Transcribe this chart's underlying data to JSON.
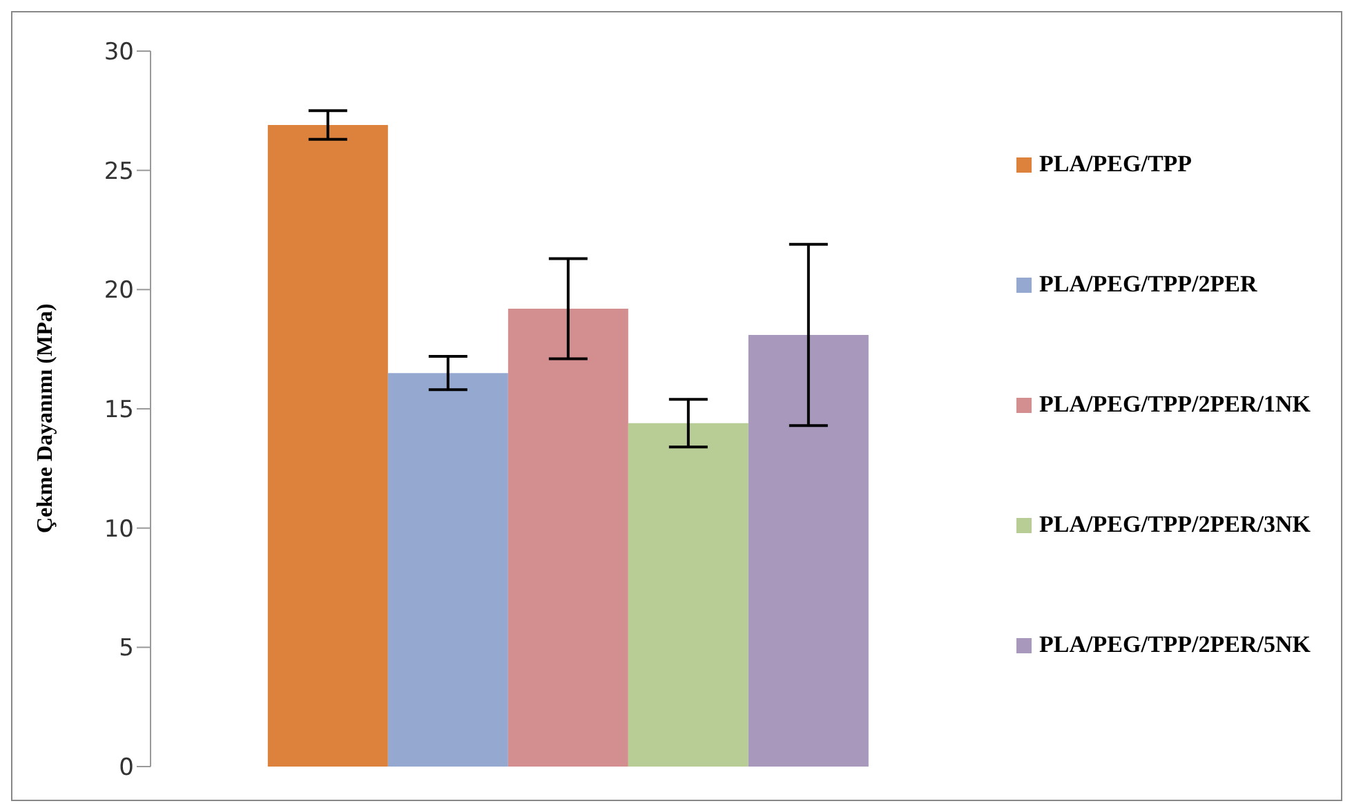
{
  "chart_data": {
    "type": "bar",
    "ylabel": "Çekme Dayanımı  (MPa)",
    "categories": [
      null
    ],
    "series": [
      {
        "name": "PLA/PEG/TPP",
        "color": "#dc823d",
        "values": [
          26.9
        ],
        "errors": [
          0.6
        ]
      },
      {
        "name": "PLA/PEG/TPP/2PER",
        "color": "#95a9d0",
        "values": [
          16.5
        ],
        "errors": [
          0.7
        ]
      },
      {
        "name": "PLA/PEG/TPP/2PER/1NK",
        "color": "#d38f8f",
        "values": [
          19.2
        ],
        "errors": [
          2.1
        ]
      },
      {
        "name": "PLA/PEG/TPP/2PER/3NK",
        "color": "#b8cd95",
        "values": [
          14.4
        ],
        "errors": [
          1.0
        ]
      },
      {
        "name": "PLA/PEG/TPP/2PER/5NK",
        "color": "#a898bc",
        "values": [
          18.1
        ],
        "errors": [
          3.8
        ]
      }
    ],
    "ylim": [
      0,
      30
    ],
    "yticks": [
      0,
      5,
      10,
      15,
      20,
      25,
      30
    ],
    "grid": false,
    "legend": "right"
  }
}
